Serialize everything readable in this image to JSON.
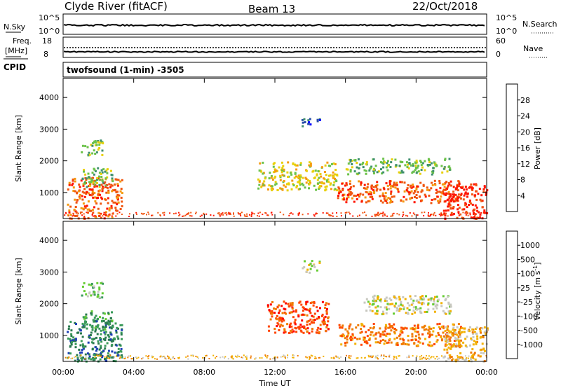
{
  "header": {
    "site": "Clyde River (fitACF)",
    "beam": "Beam 13",
    "date": "22/Oct/2018"
  },
  "strip": {
    "nsky_label": "N.Sky",
    "nsky_ticks": [
      "10^5",
      "10^0"
    ],
    "nsearch_label": "N.Search",
    "nsearch_ticks": [
      "10^5",
      "10^0"
    ],
    "freq_label_1": "Freq.",
    "freq_label_2": "[MHz]",
    "freq_ticks": [
      "18",
      "8"
    ],
    "nave_label": "Nave",
    "nave_ticks": [
      "60",
      "0"
    ],
    "cpid_label": "CPID",
    "cpid_text": "twofsound (1-min) -3505"
  },
  "chart_data": [
    {
      "type": "heatmap",
      "panel": "power",
      "ylabel": "Slant Range [km]",
      "yticks": [
        "1000",
        "2000",
        "3000",
        "4000"
      ],
      "ylim": [
        180,
        4600
      ],
      "xlabel": "Time UT",
      "xticks": [
        "00:00",
        "04:00",
        "08:00",
        "12:00",
        "16:00",
        "20:00",
        "00:00"
      ],
      "xlim_hours": [
        0,
        24
      ],
      "colorbar_label": "Power [dB]",
      "colorbar_ticks": [
        "4",
        "8",
        "12",
        "16",
        "20",
        "24",
        "28"
      ],
      "colorbar_colors": [
        "#0000ff",
        "#2a4fa8",
        "#3f8f6e",
        "#6cc24a",
        "#e8d00a",
        "#f59a0f",
        "#f0560f",
        "#ff1500"
      ],
      "regions": [
        {
          "t0": 0.2,
          "t1": 3.3,
          "r0": 200,
          "r1": 1500,
          "level": 6
        },
        {
          "t0": 1.0,
          "t1": 2.8,
          "r0": 1200,
          "r1": 1800,
          "level": 3
        },
        {
          "t0": 1.0,
          "t1": 2.2,
          "r0": 2200,
          "r1": 2700,
          "level": 3
        },
        {
          "t0": 11.0,
          "t1": 15.5,
          "r0": 1100,
          "r1": 2000,
          "level": 4
        },
        {
          "t0": 13.5,
          "t1": 14.5,
          "r0": 3100,
          "r1": 3400,
          "level": 1
        },
        {
          "t0": 15.5,
          "t1": 22.5,
          "r0": 700,
          "r1": 1400,
          "level": 6
        },
        {
          "t0": 16.0,
          "t1": 22.0,
          "r0": 1600,
          "r1": 2100,
          "level": 3
        },
        {
          "t0": 21.5,
          "t1": 24.0,
          "r0": 200,
          "r1": 1300,
          "level": 7
        }
      ]
    },
    {
      "type": "heatmap",
      "panel": "velocity",
      "ylabel": "Slant Range [km]",
      "yticks": [
        "1000",
        "2000",
        "3000",
        "4000"
      ],
      "ylim": [
        180,
        4600
      ],
      "xlabel": "Time UT",
      "xticks": [
        "00:00",
        "04:00",
        "08:00",
        "12:00",
        "16:00",
        "20:00",
        "00:00"
      ],
      "xlim_hours": [
        0,
        24
      ],
      "colorbar_label": "Velocity [m s",
      "colorbar_unit_exp": "-1",
      "colorbar_ticks": [
        "1000",
        "500",
        "100",
        "25",
        "-25",
        "-100",
        "-500",
        "-1000"
      ],
      "colorbar_colors": [
        "#1d3fb5",
        "#2a7a4f",
        "#3a9b5a",
        "#66cc33",
        "#c8c8c0",
        "#f2b100",
        "#f07a00",
        "#ff4500",
        "#ff0000"
      ],
      "regions": [
        {
          "t0": 0.2,
          "t1": 3.3,
          "r0": 200,
          "r1": 1500,
          "level": 1
        },
        {
          "t0": 1.0,
          "t1": 2.8,
          "r0": 1200,
          "r1": 1800,
          "level": 2
        },
        {
          "t0": 1.0,
          "t1": 2.2,
          "r0": 2200,
          "r1": 2700,
          "level": 3
        },
        {
          "t0": 11.5,
          "t1": 15.0,
          "r0": 1100,
          "r1": 2100,
          "level": 7
        },
        {
          "t0": 13.5,
          "t1": 14.5,
          "r0": 3000,
          "r1": 3400,
          "level": 4
        },
        {
          "t0": 15.5,
          "t1": 22.5,
          "r0": 700,
          "r1": 1400,
          "level": 6
        },
        {
          "t0": 17.0,
          "t1": 22.0,
          "r0": 1700,
          "r1": 2300,
          "level": 4
        },
        {
          "t0": 21.5,
          "t1": 24.0,
          "r0": 200,
          "r1": 1300,
          "level": 5
        }
      ]
    }
  ]
}
